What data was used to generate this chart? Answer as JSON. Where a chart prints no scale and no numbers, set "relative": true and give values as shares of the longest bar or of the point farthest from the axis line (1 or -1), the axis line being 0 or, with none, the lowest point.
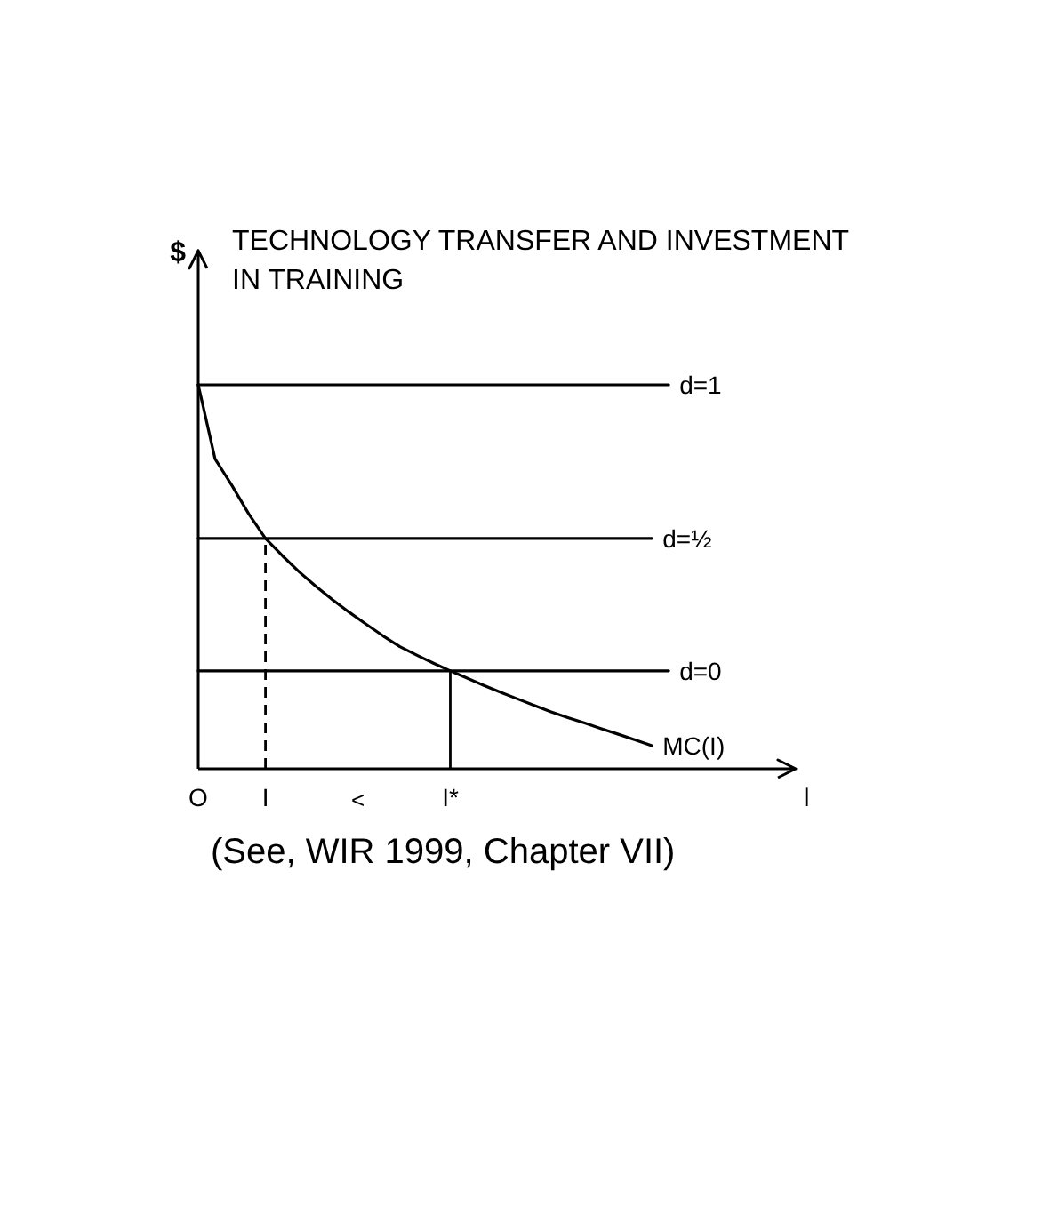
{
  "chart_data": {
    "type": "line",
    "title": "TECHNOLOGY TRANSFER AND INVESTMENT IN TRAINING",
    "xlabel": "I",
    "ylabel": "$",
    "relative": true,
    "grid": false,
    "categories": [
      "O",
      null,
      null,
      null,
      "I",
      null,
      null,
      null,
      null,
      null,
      null,
      null,
      null,
      null,
      null,
      "I*",
      null,
      null,
      null,
      null,
      null,
      null,
      null,
      null,
      null,
      null,
      null,
      null,
      null
    ],
    "series": [
      {
        "name": "d=1",
        "color": "#000000",
        "values": [
          1,
          1,
          1,
          1,
          1,
          1,
          1,
          1,
          1,
          1,
          1,
          1,
          1,
          1,
          1,
          1,
          1,
          1,
          1,
          1,
          1,
          1,
          1,
          1,
          1,
          1,
          1,
          1,
          1
        ]
      },
      {
        "name": "d=½",
        "color": "#000000",
        "values": [
          0.6,
          0.6,
          0.6,
          0.6,
          0.6,
          0.6,
          0.6,
          0.6,
          0.6,
          0.6,
          0.6,
          0.6,
          0.6,
          0.6,
          0.6,
          0.6,
          0.6,
          0.6,
          0.6,
          0.6,
          0.6,
          0.6,
          0.6,
          0.6,
          0.6,
          0.6,
          0.6,
          0.6,
          null
        ]
      },
      {
        "name": "d=0",
        "color": "#000000",
        "values": [
          0.255,
          0.255,
          0.255,
          0.255,
          0.255,
          0.255,
          0.255,
          0.255,
          0.255,
          0.255,
          0.255,
          0.255,
          0.255,
          0.255,
          0.255,
          0.255,
          0.255,
          0.255,
          0.255,
          0.255,
          0.255,
          0.255,
          0.255,
          0.255,
          0.255,
          0.255,
          0.255,
          0.255,
          0.255
        ]
      },
      {
        "name": "MC(I)",
        "color": "#000000",
        "values": [
          1,
          0.807,
          0.738,
          0.664,
          0.6,
          0.555,
          0.513,
          0.475,
          0.44,
          0.407,
          0.376,
          0.346,
          0.318,
          0.296,
          0.275,
          0.255,
          0.236,
          0.217,
          0.199,
          0.182,
          0.165,
          0.148,
          0.133,
          0.119,
          0.104,
          0.09,
          0.075,
          0.06,
          null
        ]
      }
    ],
    "ref_lines": [
      {
        "axis": "x",
        "value": "I",
        "color": "#000000",
        "line_style": "dashed"
      },
      {
        "axis": "x",
        "value": "I*",
        "color": "#000000",
        "line_style": "solid"
      }
    ],
    "annotations": [
      "<",
      "(See, WIR 1999, Chapter VII)"
    ]
  }
}
